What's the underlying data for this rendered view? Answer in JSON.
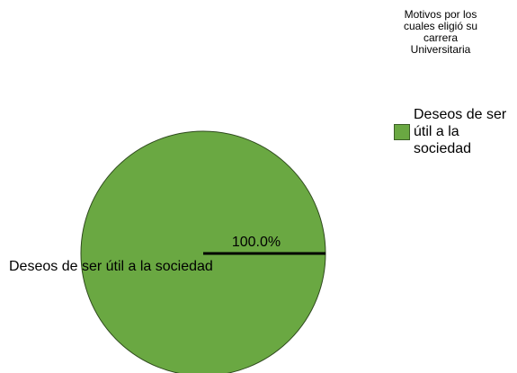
{
  "chart_data": {
    "type": "pie",
    "legend_title": "Motivos por los cuales eligió su carrera Universitaria",
    "categories": [
      "Deseos de ser útil a la sociedad"
    ],
    "values": [
      100
    ],
    "value_labels": [
      "100.0%"
    ],
    "colors": [
      "#6aa842"
    ],
    "legend": "right"
  }
}
